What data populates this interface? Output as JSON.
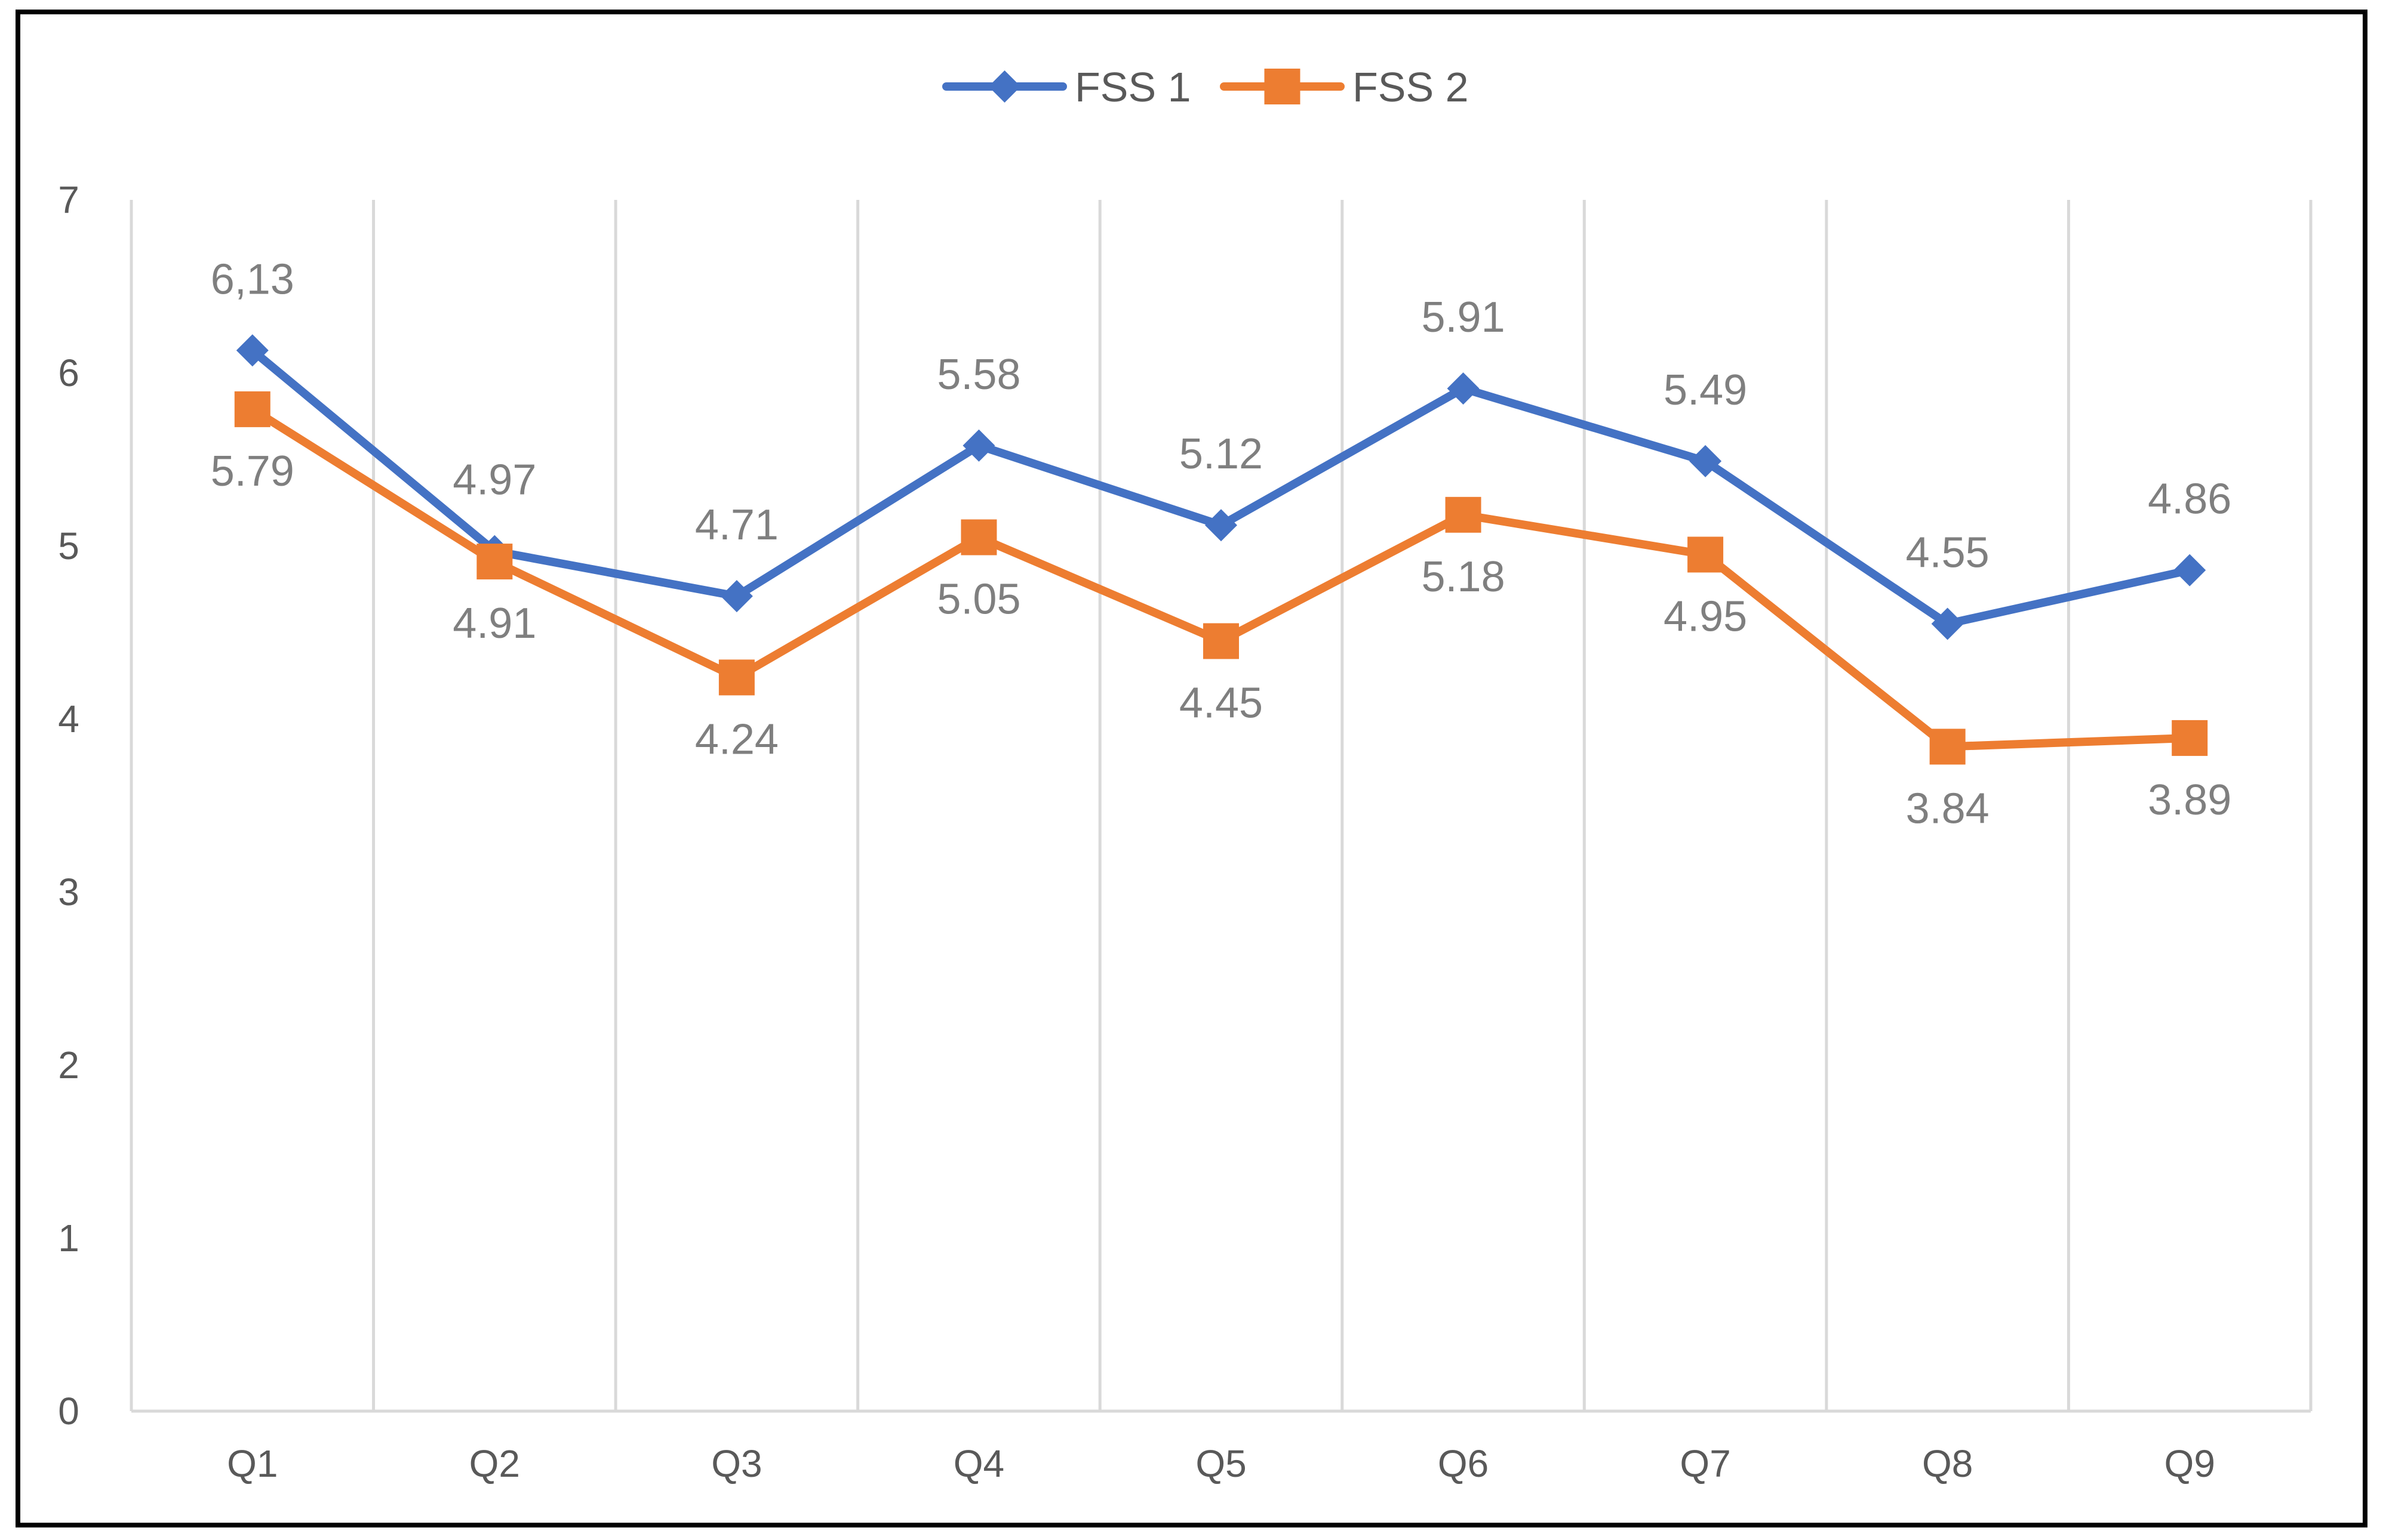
{
  "chart_data": {
    "type": "line",
    "title": "",
    "xlabel": "",
    "ylabel": "",
    "categories": [
      "Q1",
      "Q2",
      "Q3",
      "Q4",
      "Q5",
      "Q6",
      "Q7",
      "Q8",
      "Q9"
    ],
    "ylim": [
      0,
      7
    ],
    "yticks": [
      "0",
      "1",
      "2",
      "3",
      "4",
      "5",
      "6",
      "7"
    ],
    "grid": "vertical",
    "legend_position": "top-center",
    "series": [
      {
        "name": "FSS 1",
        "color": "#4472C4",
        "marker": "diamond",
        "values": [
          6.13,
          4.97,
          4.71,
          5.58,
          5.12,
          5.91,
          5.49,
          4.55,
          4.86
        ],
        "labels": [
          "6,13",
          "4.97",
          "4.71",
          "5.58",
          "5.12",
          "5.91",
          "5.49",
          "4.55",
          "4.86"
        ],
        "label_position": "above"
      },
      {
        "name": "FSS 2",
        "color": "#ED7D31",
        "marker": "square",
        "values": [
          5.79,
          4.91,
          4.24,
          5.05,
          4.45,
          5.18,
          4.95,
          3.84,
          3.89
        ],
        "labels": [
          "5.79",
          "4.91",
          "4.24",
          "5.05",
          "4.45",
          "5.18",
          "4.95",
          "3.84",
          "3.89"
        ],
        "label_position": "below"
      }
    ]
  }
}
